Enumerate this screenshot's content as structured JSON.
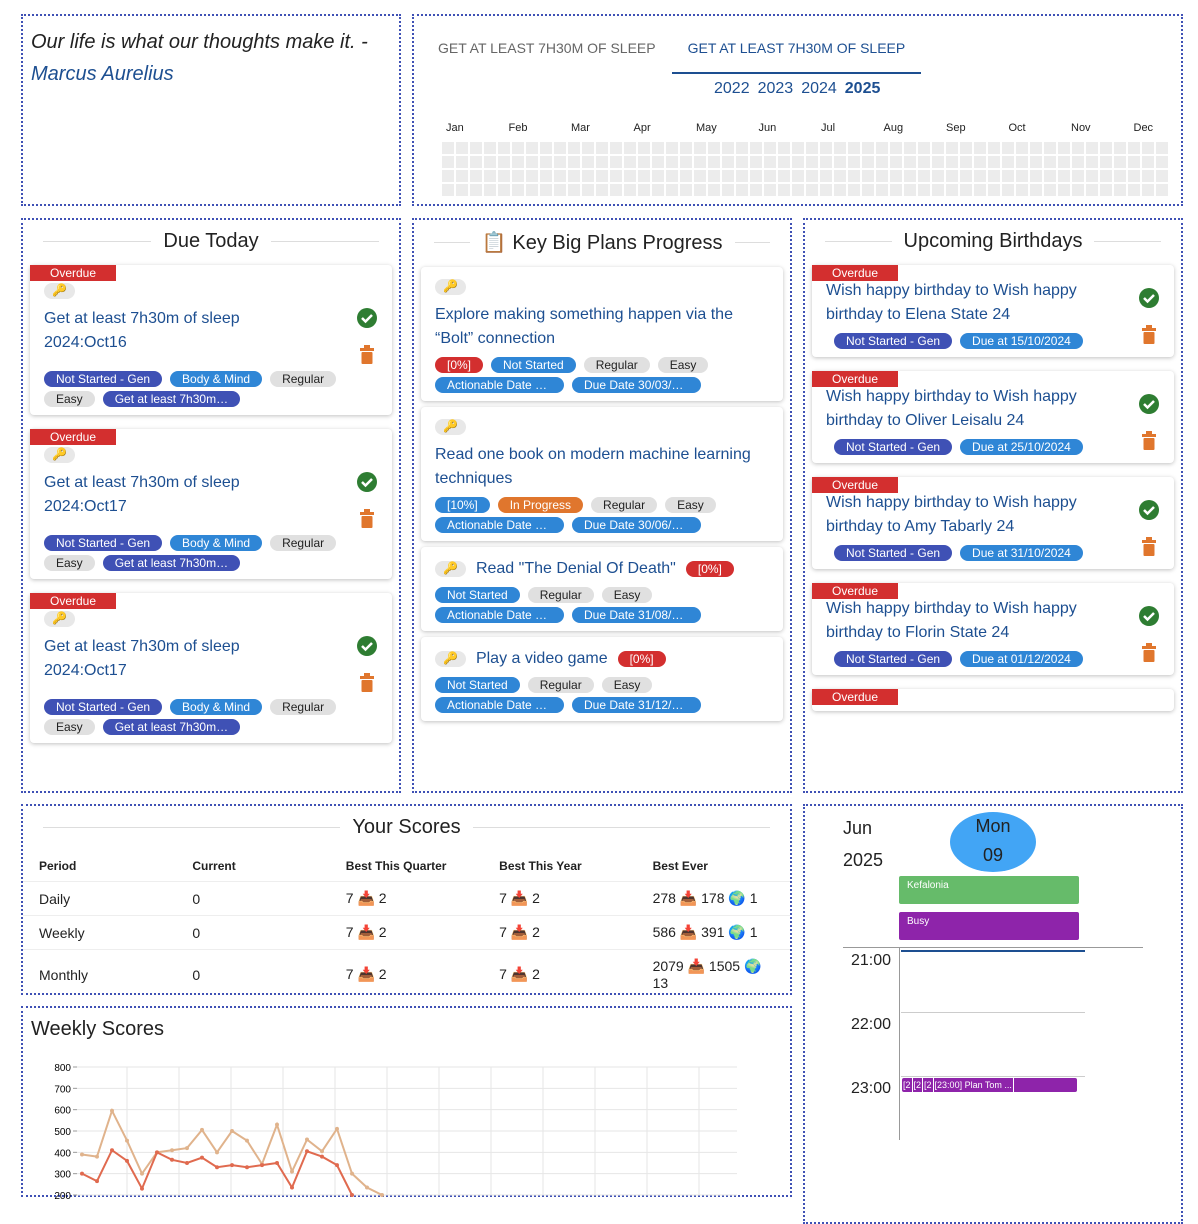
{
  "quote": {
    "text": "Our life is what our thoughts make it. -",
    "author": "Marcus Aurelius"
  },
  "habit": {
    "tabs": [
      "GET AT LEAST 7H30M OF SLEEP",
      "GET AT LEAST 7H30M OF SLEEP"
    ],
    "years": [
      "2022",
      "2023",
      "2024",
      "2025"
    ],
    "months": [
      "Jan",
      "Feb",
      "Mar",
      "Apr",
      "May",
      "Jun",
      "Jul",
      "Aug",
      "Sep",
      "Oct",
      "Nov",
      "Dec"
    ]
  },
  "due_today": {
    "title": "Due Today",
    "items": [
      {
        "status": "Overdue",
        "icon": "🔑",
        "title": "Get at least 7h30m of sleep 2024:Oct16",
        "tags": [
          {
            "text": "Not Started - Gen",
            "color": "#3f51b5"
          },
          {
            "text": "Body & Mind",
            "color": "#2f86d6"
          },
          {
            "text": "Regular",
            "color": "#e0e0e0"
          },
          {
            "text": "Easy",
            "color": "#e0e0e0"
          },
          {
            "text": "Get at least 7h30m…",
            "color": "#3f51b5"
          }
        ]
      },
      {
        "status": "Overdue",
        "icon": "🔑",
        "title": "Get at least 7h30m of sleep 2024:Oct17",
        "tags": [
          {
            "text": "Not Started - Gen",
            "color": "#3f51b5"
          },
          {
            "text": "Body & Mind",
            "color": "#2f86d6"
          },
          {
            "text": "Regular",
            "color": "#e0e0e0"
          },
          {
            "text": "Easy",
            "color": "#e0e0e0"
          },
          {
            "text": "Get at least 7h30m…",
            "color": "#3f51b5"
          }
        ]
      },
      {
        "status": "Overdue",
        "icon": "🔑",
        "title": "Get at least 7h30m of sleep 2024:Oct17",
        "tags": [
          {
            "text": "Not Started - Gen",
            "color": "#3f51b5"
          },
          {
            "text": "Body & Mind",
            "color": "#2f86d6"
          },
          {
            "text": "Regular",
            "color": "#e0e0e0"
          },
          {
            "text": "Easy",
            "color": "#e0e0e0"
          },
          {
            "text": "Get at least 7h30m…",
            "color": "#3f51b5"
          }
        ]
      }
    ]
  },
  "big_plans": {
    "icon": "📋",
    "title": "Key Big Plans Progress",
    "items": [
      {
        "icon": "🔑",
        "title": "Explore making something happen via the “Bolt” connection",
        "tags": [
          {
            "text": "[0%]",
            "color": "#d32f2f"
          },
          {
            "text": "Not Started",
            "color": "#2f86d6"
          },
          {
            "text": "Regular",
            "color": "#e0e0e0"
          },
          {
            "text": "Easy",
            "color": "#e0e0e0"
          },
          {
            "text": "Actionable Date …",
            "color": "#2f86d6"
          },
          {
            "text": "Due Date 30/03/…",
            "color": "#2f86d6"
          }
        ]
      },
      {
        "icon": "🔑",
        "title": "Read one book on modern machine learning techniques",
        "tags": [
          {
            "text": "[10%]",
            "color": "#2f86d6"
          },
          {
            "text": "In Progress",
            "color": "#e0762d"
          },
          {
            "text": "Regular",
            "color": "#e0e0e0"
          },
          {
            "text": "Easy",
            "color": "#e0e0e0"
          },
          {
            "text": "Actionable Date …",
            "color": "#2f86d6"
          },
          {
            "text": "Due Date 30/06/…",
            "color": "#2f86d6"
          }
        ]
      },
      {
        "icon": "🔑",
        "title": "Read \"The Denial Of Death\"",
        "progress": {
          "text": "[0%]",
          "color": "#d32f2f"
        },
        "tags": [
          {
            "text": "Not Started",
            "color": "#2f86d6"
          },
          {
            "text": "Regular",
            "color": "#e0e0e0"
          },
          {
            "text": "Easy",
            "color": "#e0e0e0"
          },
          {
            "text": "Actionable Date …",
            "color": "#2f86d6"
          },
          {
            "text": "Due Date 31/08/…",
            "color": "#2f86d6"
          }
        ]
      },
      {
        "icon": "🔑",
        "title": "Play a video game",
        "progress": {
          "text": "[0%]",
          "color": "#d32f2f"
        },
        "tags": [
          {
            "text": "Not Started",
            "color": "#2f86d6"
          },
          {
            "text": "Regular",
            "color": "#e0e0e0"
          },
          {
            "text": "Easy",
            "color": "#e0e0e0"
          },
          {
            "text": "Actionable Date …",
            "color": "#2f86d6"
          },
          {
            "text": "Due Date 31/12/…",
            "color": "#2f86d6"
          }
        ]
      }
    ]
  },
  "birthdays": {
    "title": "Upcoming Birthdays",
    "items": [
      {
        "status": "Overdue",
        "title": "Wish happy birthday to Wish happy birthday to Elena State 24",
        "tags": [
          {
            "text": "Not Started - Gen",
            "color": "#3f51b5"
          },
          {
            "text": "Due at 15/10/2024",
            "color": "#2f86d6"
          }
        ]
      },
      {
        "status": "Overdue",
        "title": "Wish happy birthday to Wish happy birthday to Oliver Leisalu 24",
        "tags": [
          {
            "text": "Not Started - Gen",
            "color": "#3f51b5"
          },
          {
            "text": "Due at 25/10/2024",
            "color": "#2f86d6"
          }
        ]
      },
      {
        "status": "Overdue",
        "title": "Wish happy birthday to Wish happy birthday to Amy Tabarly 24",
        "tags": [
          {
            "text": "Not Started - Gen",
            "color": "#3f51b5"
          },
          {
            "text": "Due at 31/10/2024",
            "color": "#2f86d6"
          }
        ]
      },
      {
        "status": "Overdue",
        "title": "Wish happy birthday to Wish happy birthday to Florin State 24",
        "tags": [
          {
            "text": "Not Started - Gen",
            "color": "#3f51b5"
          },
          {
            "text": "Due at 01/12/2024",
            "color": "#2f86d6"
          }
        ]
      },
      {
        "status": "Overdue"
      }
    ]
  },
  "scores": {
    "title": "Your Scores",
    "headers": [
      "Period",
      "Current",
      "Best This Quarter",
      "Best This Year",
      "Best Ever"
    ],
    "rows": [
      [
        "Daily",
        "0",
        "7 📥 2",
        "7 📥 2",
        "278 📥 178 🌍 1"
      ],
      [
        "Weekly",
        "0",
        "7 📥 2",
        "7 📥 2",
        "586 📥 391 🌍 1"
      ],
      [
        "Monthly",
        "0",
        "7 📥 2",
        "7 📥 2",
        "2079 📥 1505 🌍 13"
      ]
    ]
  },
  "chart_data": {
    "type": "line",
    "title": "Weekly Scores",
    "ylim": [
      200,
      800
    ],
    "yticks": [
      200,
      300,
      400,
      500,
      600,
      700,
      800
    ],
    "grid": true,
    "series": [
      {
        "color": "#e0b38c",
        "values": [
          390,
          380,
          595,
          455,
          300,
          400,
          410,
          420,
          505,
          400,
          500,
          455,
          345,
          530,
          310,
          460,
          405,
          510,
          300,
          235,
          200
        ]
      },
      {
        "color": "#e06a4f",
        "values": [
          300,
          265,
          410,
          360,
          230,
          400,
          365,
          350,
          375,
          330,
          340,
          330,
          340,
          350,
          235,
          405,
          380,
          340,
          200
        ]
      }
    ]
  },
  "calendar": {
    "month": "Jun",
    "year": "2025",
    "weekday": "Mon",
    "day": "09",
    "all_day": [
      "Kefalonia",
      "Busy"
    ],
    "hours": [
      "21:00",
      "22:00",
      "23:00"
    ],
    "events": [
      "[2",
      "[2",
      "[2",
      "[23:00] Plan Tom ..."
    ]
  }
}
